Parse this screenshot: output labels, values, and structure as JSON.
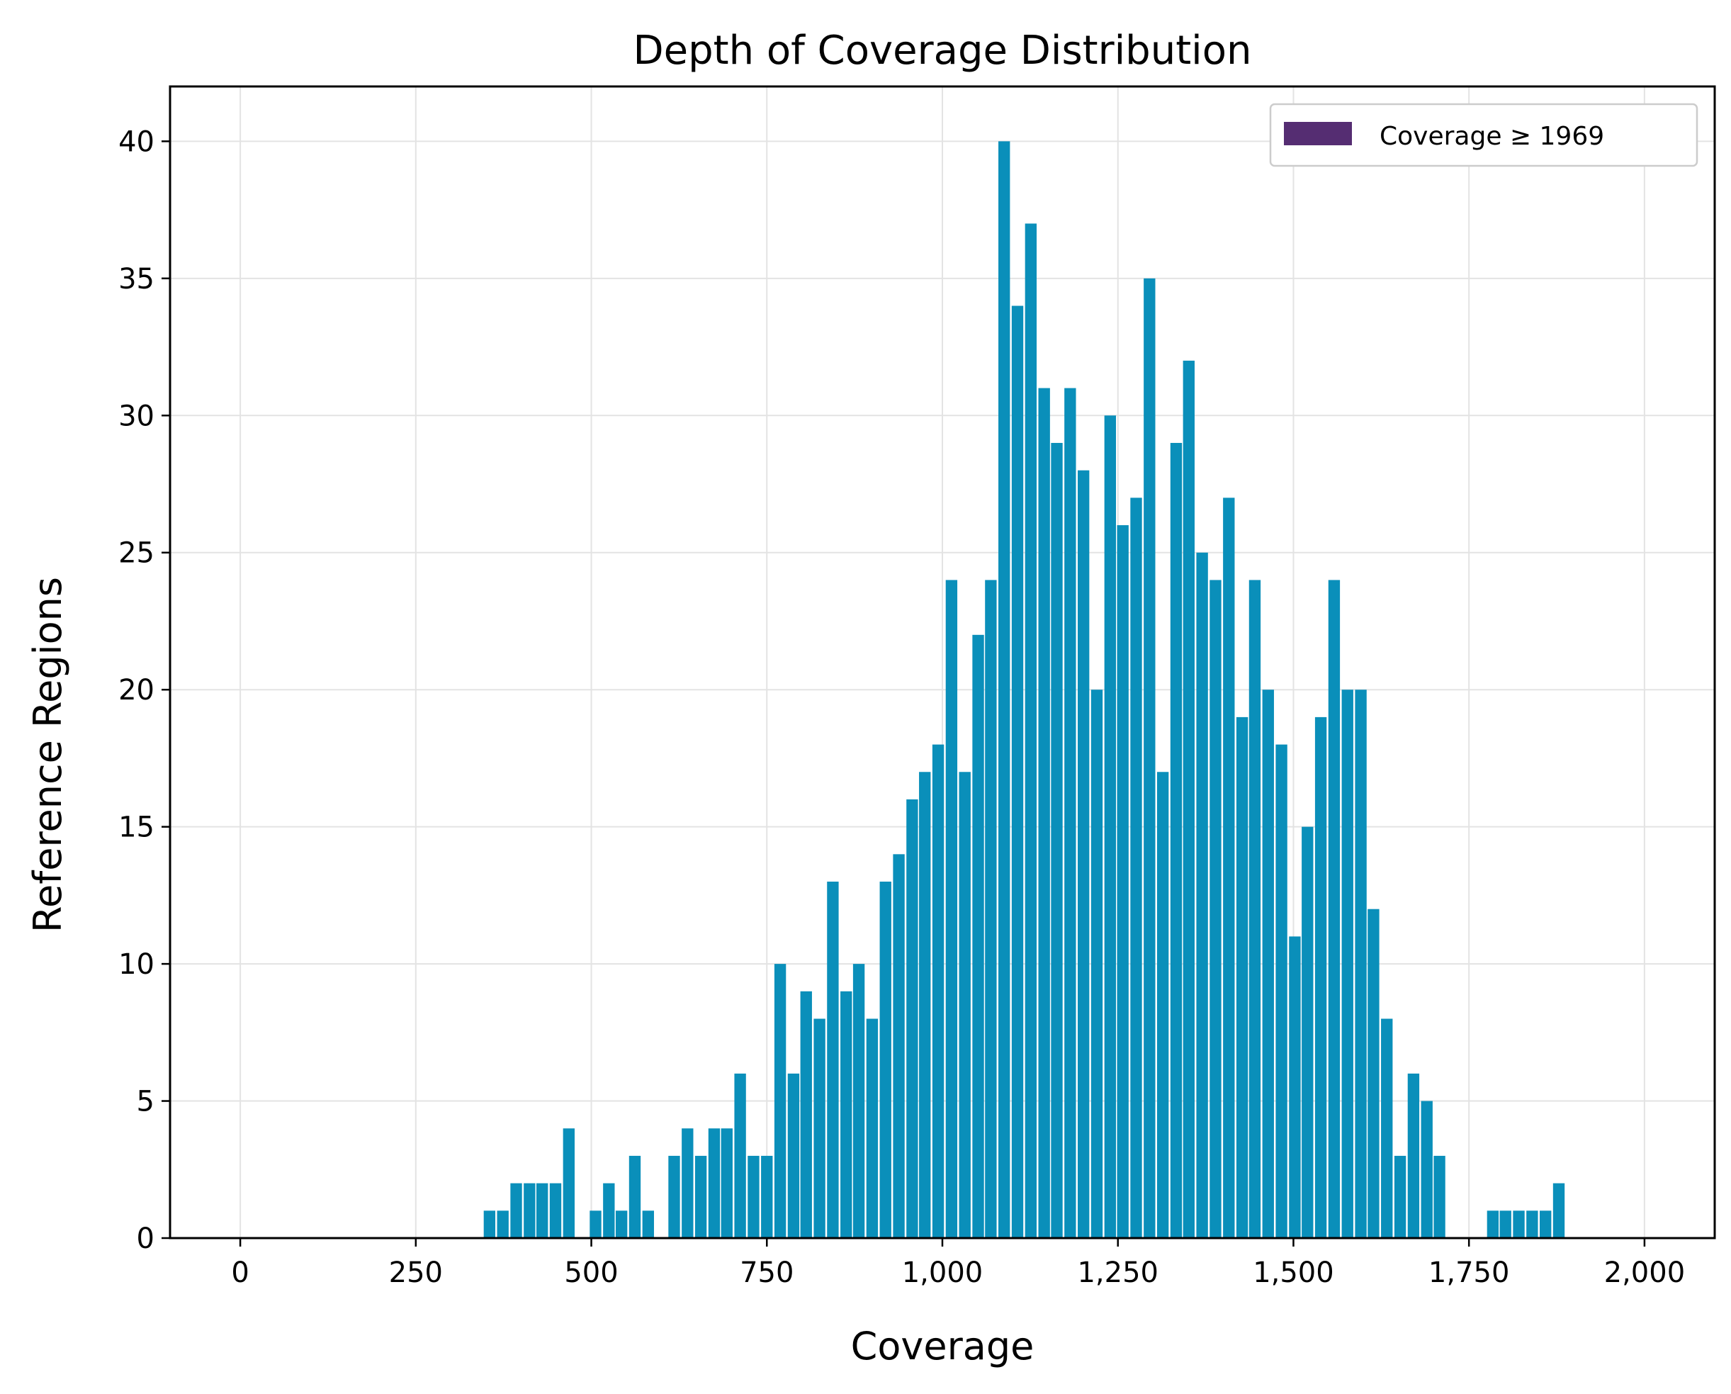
{
  "chart_data": {
    "type": "bar",
    "title": "Depth of Coverage Distribution",
    "xlabel": "Coverage",
    "ylabel": "Reference Regions",
    "xlim": [
      -100,
      2100
    ],
    "ylim": [
      0,
      42
    ],
    "xticks": [
      0,
      250,
      500,
      750,
      1000,
      1250,
      1500,
      1750,
      2000
    ],
    "xtick_labels": [
      "0",
      "250",
      "500",
      "750",
      "1,000",
      "1,250",
      "1,500",
      "1,750",
      "2,000"
    ],
    "yticks": [
      0,
      5,
      10,
      15,
      20,
      25,
      30,
      35,
      40
    ],
    "ytick_labels": [
      "0",
      "5",
      "10",
      "15",
      "20",
      "25",
      "30",
      "35",
      "40"
    ],
    "grid": true,
    "bin_width": 16.5,
    "bar_color": "#0a8fba",
    "legend": {
      "placement": "top-right",
      "entries": [
        {
          "label": "Coverage ≥ 1969",
          "color": "#552d72"
        }
      ]
    },
    "series": [
      {
        "values": [
          {
            "x": 355,
            "y": 1
          },
          {
            "x": 374,
            "y": 1
          },
          {
            "x": 393,
            "y": 2
          },
          {
            "x": 412,
            "y": 2
          },
          {
            "x": 430,
            "y": 2
          },
          {
            "x": 449,
            "y": 2
          },
          {
            "x": 468,
            "y": 4
          },
          {
            "x": 506,
            "y": 1
          },
          {
            "x": 525,
            "y": 2
          },
          {
            "x": 543,
            "y": 1
          },
          {
            "x": 562,
            "y": 3
          },
          {
            "x": 581,
            "y": 1
          },
          {
            "x": 618,
            "y": 3
          },
          {
            "x": 637,
            "y": 4
          },
          {
            "x": 656,
            "y": 3
          },
          {
            "x": 675,
            "y": 4
          },
          {
            "x": 693,
            "y": 4
          },
          {
            "x": 712,
            "y": 6
          },
          {
            "x": 731,
            "y": 3
          },
          {
            "x": 750,
            "y": 3
          },
          {
            "x": 769,
            "y": 10
          },
          {
            "x": 788,
            "y": 6
          },
          {
            "x": 806,
            "y": 9
          },
          {
            "x": 825,
            "y": 8
          },
          {
            "x": 844,
            "y": 13
          },
          {
            "x": 863,
            "y": 9
          },
          {
            "x": 881,
            "y": 10
          },
          {
            "x": 900,
            "y": 8
          },
          {
            "x": 919,
            "y": 13
          },
          {
            "x": 938,
            "y": 14
          },
          {
            "x": 957,
            "y": 16
          },
          {
            "x": 975,
            "y": 17
          },
          {
            "x": 994,
            "y": 18
          },
          {
            "x": 1013,
            "y": 24
          },
          {
            "x": 1032,
            "y": 17
          },
          {
            "x": 1051,
            "y": 22
          },
          {
            "x": 1069,
            "y": 24
          },
          {
            "x": 1088,
            "y": 40
          },
          {
            "x": 1107,
            "y": 34
          },
          {
            "x": 1126,
            "y": 37
          },
          {
            "x": 1145,
            "y": 31
          },
          {
            "x": 1163,
            "y": 29
          },
          {
            "x": 1182,
            "y": 31
          },
          {
            "x": 1201,
            "y": 28
          },
          {
            "x": 1220,
            "y": 20
          },
          {
            "x": 1239,
            "y": 30
          },
          {
            "x": 1257,
            "y": 26
          },
          {
            "x": 1276,
            "y": 27
          },
          {
            "x": 1295,
            "y": 35
          },
          {
            "x": 1314,
            "y": 17
          },
          {
            "x": 1333,
            "y": 29
          },
          {
            "x": 1351,
            "y": 32
          },
          {
            "x": 1370,
            "y": 25
          },
          {
            "x": 1389,
            "y": 24
          },
          {
            "x": 1408,
            "y": 27
          },
          {
            "x": 1427,
            "y": 19
          },
          {
            "x": 1445,
            "y": 24
          },
          {
            "x": 1464,
            "y": 20
          },
          {
            "x": 1483,
            "y": 18
          },
          {
            "x": 1502,
            "y": 11
          },
          {
            "x": 1520,
            "y": 15
          },
          {
            "x": 1539,
            "y": 19
          },
          {
            "x": 1558,
            "y": 24
          },
          {
            "x": 1577,
            "y": 20
          },
          {
            "x": 1596,
            "y": 20
          },
          {
            "x": 1614,
            "y": 12
          },
          {
            "x": 1633,
            "y": 8
          },
          {
            "x": 1652,
            "y": 3
          },
          {
            "x": 1671,
            "y": 6
          },
          {
            "x": 1690,
            "y": 5
          },
          {
            "x": 1708,
            "y": 3
          },
          {
            "x": 1784,
            "y": 1
          },
          {
            "x": 1802,
            "y": 1
          },
          {
            "x": 1821,
            "y": 1
          },
          {
            "x": 1840,
            "y": 1
          },
          {
            "x": 1859,
            "y": 1
          },
          {
            "x": 1878,
            "y": 2
          }
        ]
      }
    ]
  }
}
